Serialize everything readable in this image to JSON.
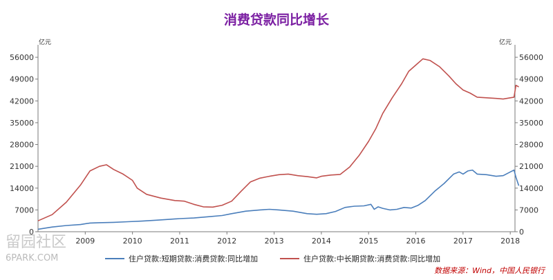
{
  "chart_data": {
    "type": "line",
    "title": "消费贷款同比增长",
    "y_unit_left": "亿元",
    "y_unit_right": "亿元",
    "ylim": [
      0,
      60000
    ],
    "yticks": [
      0,
      7000,
      14000,
      21000,
      28000,
      35000,
      42000,
      49000,
      56000
    ],
    "xlim": [
      2008.0,
      2018.1
    ],
    "xticks": [
      {
        "label": "2009",
        "value": 2009
      },
      {
        "label": "2010",
        "value": 2010
      },
      {
        "label": "2011",
        "value": 2011
      },
      {
        "label": "2012",
        "value": 2012
      },
      {
        "label": "2013",
        "value": 2013
      },
      {
        "label": "2014",
        "value": 2014
      },
      {
        "label": "2015",
        "value": 2015
      },
      {
        "label": "2016",
        "value": 2016
      },
      {
        "label": "2017",
        "value": 2017
      },
      {
        "label": "2018",
        "value": 2018
      }
    ],
    "series": [
      {
        "name": "住户贷款:短期贷款:消费贷款:同比增加",
        "color": "#4a7ebb",
        "points": [
          [
            2008.0,
            800
          ],
          [
            2008.3,
            1500
          ],
          [
            2008.6,
            2000
          ],
          [
            2008.9,
            2300
          ],
          [
            2009.1,
            2800
          ],
          [
            2009.3,
            2900
          ],
          [
            2009.6,
            3000
          ],
          [
            2009.9,
            3200
          ],
          [
            2010.2,
            3400
          ],
          [
            2010.5,
            3700
          ],
          [
            2010.8,
            4000
          ],
          [
            2011.0,
            4200
          ],
          [
            2011.3,
            4400
          ],
          [
            2011.6,
            4800
          ],
          [
            2011.9,
            5200
          ],
          [
            2012.1,
            5800
          ],
          [
            2012.4,
            6600
          ],
          [
            2012.7,
            7000
          ],
          [
            2012.9,
            7200
          ],
          [
            2013.1,
            7000
          ],
          [
            2013.4,
            6600
          ],
          [
            2013.7,
            5800
          ],
          [
            2013.9,
            5600
          ],
          [
            2014.1,
            5800
          ],
          [
            2014.3,
            6500
          ],
          [
            2014.5,
            7800
          ],
          [
            2014.7,
            8200
          ],
          [
            2014.9,
            8300
          ],
          [
            2015.05,
            8800
          ],
          [
            2015.12,
            7200
          ],
          [
            2015.2,
            8000
          ],
          [
            2015.3,
            7500
          ],
          [
            2015.45,
            7000
          ],
          [
            2015.6,
            7200
          ],
          [
            2015.75,
            7800
          ],
          [
            2015.9,
            7600
          ],
          [
            2016.05,
            8500
          ],
          [
            2016.2,
            10000
          ],
          [
            2016.4,
            13000
          ],
          [
            2016.6,
            15500
          ],
          [
            2016.8,
            18500
          ],
          [
            2016.92,
            19200
          ],
          [
            2017.0,
            18500
          ],
          [
            2017.1,
            19500
          ],
          [
            2017.2,
            19800
          ],
          [
            2017.3,
            18500
          ],
          [
            2017.5,
            18300
          ],
          [
            2017.7,
            17800
          ],
          [
            2017.85,
            18000
          ],
          [
            2018.0,
            19200
          ],
          [
            2018.08,
            19800
          ],
          [
            2018.12,
            17500
          ],
          [
            2018.18,
            14800
          ]
        ]
      },
      {
        "name": "住户贷款:中长期贷款:消费贷款:同比增加",
        "color": "#c0504d",
        "points": [
          [
            2008.0,
            3500
          ],
          [
            2008.3,
            5500
          ],
          [
            2008.6,
            9500
          ],
          [
            2008.9,
            15000
          ],
          [
            2009.1,
            19500
          ],
          [
            2009.3,
            21000
          ],
          [
            2009.45,
            21500
          ],
          [
            2009.6,
            20000
          ],
          [
            2009.8,
            18500
          ],
          [
            2010.0,
            16500
          ],
          [
            2010.1,
            14000
          ],
          [
            2010.3,
            12000
          ],
          [
            2010.6,
            10800
          ],
          [
            2010.9,
            10000
          ],
          [
            2011.1,
            9800
          ],
          [
            2011.3,
            8800
          ],
          [
            2011.5,
            8000
          ],
          [
            2011.7,
            7900
          ],
          [
            2011.9,
            8500
          ],
          [
            2012.1,
            9800
          ],
          [
            2012.3,
            13000
          ],
          [
            2012.5,
            16000
          ],
          [
            2012.7,
            17200
          ],
          [
            2012.9,
            17800
          ],
          [
            2013.1,
            18300
          ],
          [
            2013.3,
            18500
          ],
          [
            2013.5,
            18000
          ],
          [
            2013.7,
            17700
          ],
          [
            2013.9,
            17300
          ],
          [
            2014.0,
            17800
          ],
          [
            2014.2,
            18200
          ],
          [
            2014.4,
            18400
          ],
          [
            2014.6,
            20800
          ],
          [
            2014.8,
            24500
          ],
          [
            2015.0,
            29000
          ],
          [
            2015.15,
            33000
          ],
          [
            2015.3,
            38000
          ],
          [
            2015.5,
            43000
          ],
          [
            2015.7,
            47500
          ],
          [
            2015.85,
            51500
          ],
          [
            2016.0,
            53500
          ],
          [
            2016.15,
            55500
          ],
          [
            2016.3,
            55000
          ],
          [
            2016.5,
            53000
          ],
          [
            2016.7,
            50000
          ],
          [
            2016.85,
            47500
          ],
          [
            2017.0,
            45500
          ],
          [
            2017.15,
            44500
          ],
          [
            2017.3,
            43200
          ],
          [
            2017.5,
            43000
          ],
          [
            2017.7,
            42800
          ],
          [
            2017.85,
            42600
          ],
          [
            2018.0,
            43000
          ],
          [
            2018.08,
            43200
          ],
          [
            2018.12,
            47000
          ],
          [
            2018.18,
            46500
          ]
        ]
      }
    ],
    "legend_position": "bottom",
    "grid": false,
    "source_note": "数据来源：Wind，中国人民银行"
  },
  "watermark": {
    "main": "留园社区",
    "sub": "6PARK.COM"
  }
}
